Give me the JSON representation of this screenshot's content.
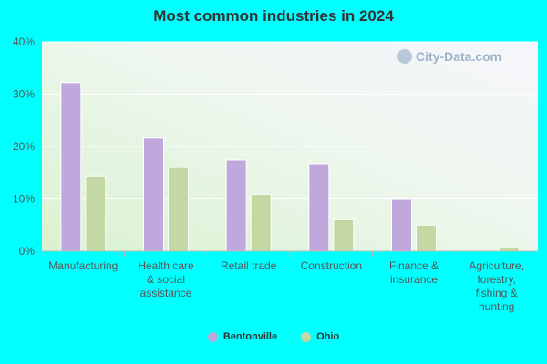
{
  "title": "Most common industries in 2024",
  "watermark": "City-Data.com",
  "chart_data": {
    "type": "bar",
    "title": "Most common industries in 2024",
    "categories": [
      "Manufacturing",
      "Health care & social assistance",
      "Retail trade",
      "Construction",
      "Finance & insurance",
      "Agriculture, forestry, fishing & hunting"
    ],
    "category_lines": [
      [
        "Manufacturing"
      ],
      [
        "Health care",
        "& social",
        "assistance"
      ],
      [
        "Retail trade"
      ],
      [
        "Construction"
      ],
      [
        "Finance &",
        "insurance"
      ],
      [
        "Agriculture,",
        "forestry,",
        "fishing &",
        "hunting"
      ]
    ],
    "series": [
      {
        "name": "Bentonville",
        "color": "#c0a8dc",
        "values": [
          32.2,
          21.6,
          17.4,
          16.7,
          9.9,
          0.0
        ]
      },
      {
        "name": "Ohio",
        "color": "#c4d8a4",
        "values": [
          14.4,
          16.0,
          10.9,
          6.0,
          5.0,
          0.6
        ]
      }
    ],
    "ylim": [
      0,
      40
    ],
    "yticks": [
      0,
      10,
      20,
      30,
      40
    ],
    "ytick_labels": [
      "0%",
      "10%",
      "20%",
      "30%",
      "40%"
    ],
    "grid": true,
    "legend_position": "bottom"
  }
}
